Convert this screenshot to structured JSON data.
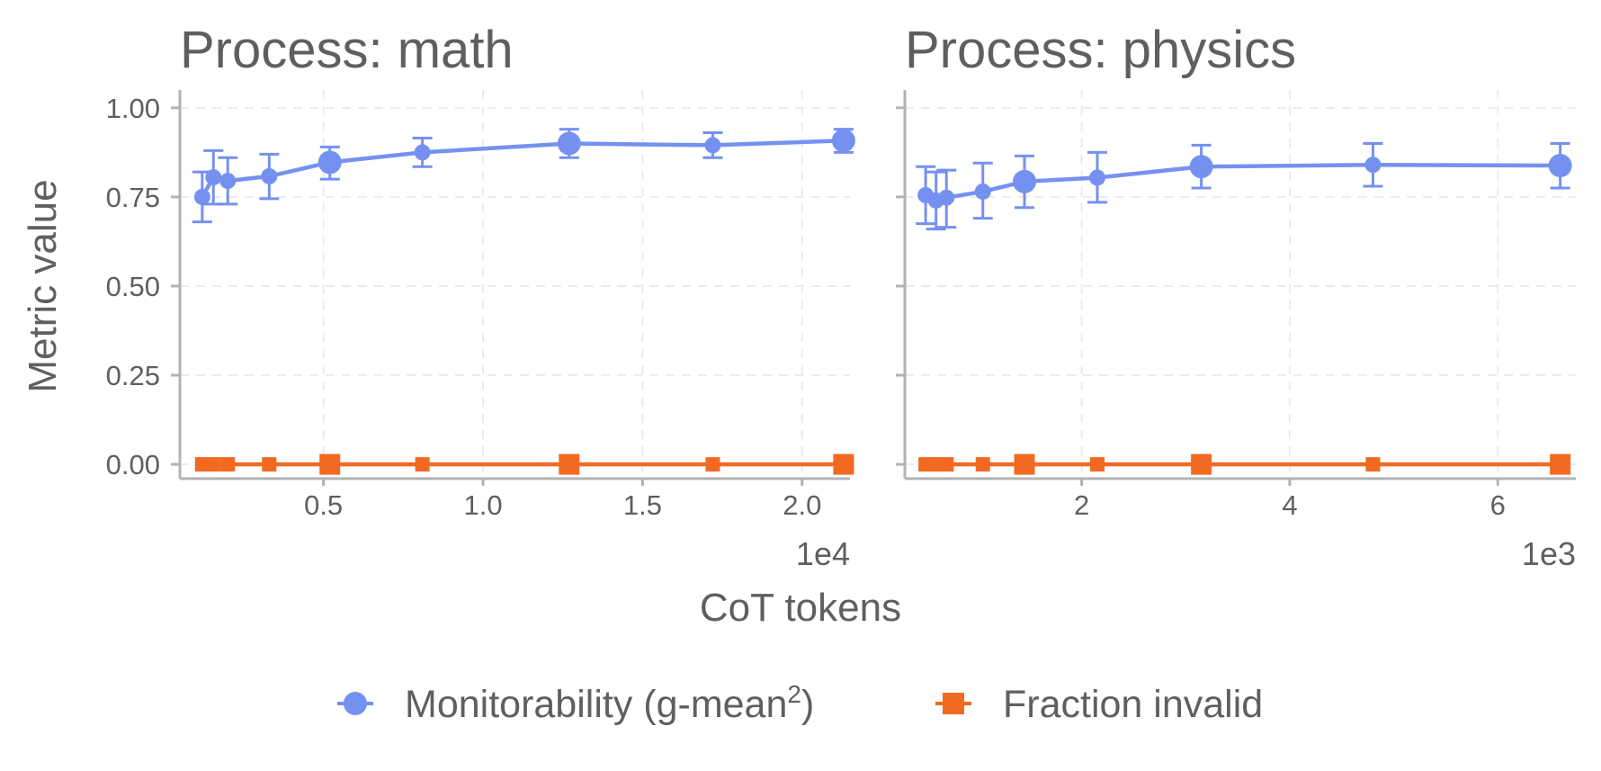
{
  "chart_data": {
    "type": "line",
    "ylabel": "Metric value",
    "xlabel": "CoT tokens",
    "ylim": [
      -0.04,
      1.05
    ],
    "yticks": [
      0.0,
      0.25,
      0.5,
      0.75,
      1.0
    ],
    "ytick_labels": [
      "0.00",
      "0.25",
      "0.50",
      "0.75",
      "1.00"
    ],
    "grid": true,
    "legend": {
      "placement": "bottom",
      "items": [
        {
          "label": "Monitorability (g-mean",
          "sup": "2",
          "suffix": ")",
          "marker": "circle",
          "color": "#7591f0"
        },
        {
          "label": "Fraction invalid",
          "marker": "square",
          "color": "#f26a21"
        }
      ]
    },
    "panels": [
      {
        "title": "Process: math",
        "x_scale_label": "1e4",
        "xlim": [
          0.05,
          2.15
        ],
        "xticks": [
          0.5,
          1.0,
          1.5,
          2.0
        ],
        "xtick_labels": [
          "0.5",
          "1.0",
          "1.5",
          "2.0"
        ],
        "series": [
          {
            "name": "Monitorability (g-mean²)",
            "color": "#7591f0",
            "marker": "circle",
            "x": [
              0.12,
              0.155,
              0.2,
              0.33,
              0.52,
              0.81,
              1.27,
              1.72,
              2.13
            ],
            "y": [
              0.75,
              0.805,
              0.795,
              0.808,
              0.847,
              0.875,
              0.9,
              0.895,
              0.908
            ],
            "err_low": [
              0.68,
              0.73,
              0.73,
              0.745,
              0.8,
              0.835,
              0.86,
              0.86,
              0.875
            ],
            "err_high": [
              0.82,
              0.88,
              0.86,
              0.87,
              0.89,
              0.915,
              0.94,
              0.93,
              0.94
            ],
            "marker_size": [
              1,
              1,
              1,
              1,
              1.5,
              1,
              1.5,
              1,
              1.5
            ]
          },
          {
            "name": "Fraction invalid",
            "color": "#f26a21",
            "marker": "square",
            "x": [
              0.12,
              0.155,
              0.2,
              0.33,
              0.52,
              0.81,
              1.27,
              1.72,
              2.13
            ],
            "y": [
              0,
              0,
              0,
              0,
              0,
              0,
              0,
              0,
              0
            ],
            "marker_size": [
              1,
              1,
              1,
              1,
              1.5,
              1,
              1.5,
              1,
              1.5
            ]
          }
        ]
      },
      {
        "title": "Process: physics",
        "x_scale_label": "1e3",
        "xlim": [
          0.3,
          6.75
        ],
        "xticks": [
          2,
          4,
          6
        ],
        "xtick_labels": [
          "2",
          "4",
          "6"
        ],
        "series": [
          {
            "name": "Monitorability (g-mean²)",
            "color": "#7591f0",
            "marker": "circle",
            "x": [
              0.5,
              0.6,
              0.7,
              1.05,
              1.45,
              2.15,
              3.15,
              4.8,
              6.6
            ],
            "y": [
              0.755,
              0.74,
              0.748,
              0.765,
              0.793,
              0.804,
              0.835,
              0.84,
              0.838
            ],
            "err_low": [
              0.675,
              0.66,
              0.665,
              0.69,
              0.72,
              0.735,
              0.775,
              0.78,
              0.775
            ],
            "err_high": [
              0.835,
              0.82,
              0.825,
              0.845,
              0.865,
              0.875,
              0.895,
              0.9,
              0.9
            ],
            "marker_size": [
              1,
              1,
              1,
              1,
              1.5,
              1,
              1.5,
              1,
              1.5
            ]
          },
          {
            "name": "Fraction invalid",
            "color": "#f26a21",
            "marker": "square",
            "x": [
              0.5,
              0.6,
              0.7,
              1.05,
              1.45,
              2.15,
              3.15,
              4.8,
              6.6
            ],
            "y": [
              0,
              0,
              0,
              0,
              0,
              0,
              0,
              0,
              0
            ],
            "marker_size": [
              1,
              1,
              1,
              1,
              1.5,
              1,
              1.5,
              1,
              1.5
            ]
          }
        ]
      }
    ]
  }
}
